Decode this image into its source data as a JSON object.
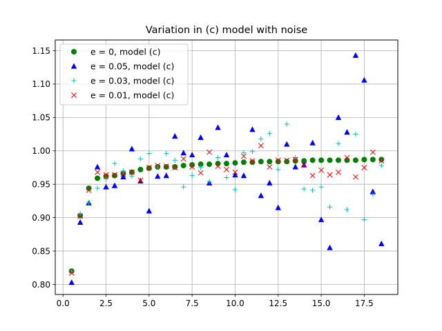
{
  "chart_data": {
    "type": "scatter",
    "title": "Variation in (c) model with noise",
    "xlabel": "",
    "ylabel": "",
    "xlim": [
      -0.45,
      19.45
    ],
    "ylim": [
      0.785,
      1.166
    ],
    "xticks": [
      0.0,
      2.5,
      5.0,
      7.5,
      10.0,
      12.5,
      15.0,
      17.5
    ],
    "xtick_labels": [
      "0.0",
      "2.5",
      "5.0",
      "7.5",
      "10.0",
      "12.5",
      "15.0",
      "17.5"
    ],
    "yticks": [
      0.8,
      0.85,
      0.9,
      0.95,
      1.0,
      1.05,
      1.1,
      1.15
    ],
    "ytick_labels": [
      "0.80",
      "0.85",
      "0.90",
      "0.95",
      "1.00",
      "1.05",
      "1.10",
      "1.15"
    ],
    "grid": true,
    "legend_position": "top-left",
    "x": [
      0.5,
      1.0,
      1.5,
      2.0,
      2.5,
      3.0,
      3.5,
      4.0,
      4.5,
      5.0,
      5.5,
      6.0,
      6.5,
      7.0,
      7.5,
      8.0,
      8.5,
      9.0,
      9.5,
      10.0,
      10.5,
      11.0,
      11.5,
      12.0,
      12.5,
      13.0,
      13.5,
      14.0,
      14.5,
      15.0,
      15.5,
      16.0,
      16.5,
      17.0,
      17.5,
      18.0,
      18.5
    ],
    "series": [
      {
        "name": "e = 0, model (c)",
        "marker": "circle",
        "color": "#008000",
        "values": [
          0.82,
          0.903,
          0.944,
          0.959,
          0.962,
          0.963,
          0.966,
          0.968,
          0.972,
          0.974,
          0.976,
          0.976,
          0.976,
          0.978,
          0.979,
          0.98,
          0.98,
          0.981,
          0.981,
          0.982,
          0.983,
          0.983,
          0.984,
          0.984,
          0.984,
          0.984,
          0.985,
          0.985,
          0.986,
          0.986,
          0.986,
          0.986,
          0.986,
          0.986,
          0.987,
          0.987,
          0.987
        ]
      },
      {
        "name": "e = 0.05, model (c)",
        "marker": "triangle",
        "color": "#0000ff",
        "values": [
          0.803,
          0.893,
          0.922,
          0.976,
          0.946,
          0.948,
          0.961,
          1.003,
          0.955,
          0.91,
          0.962,
          0.963,
          1.022,
          0.997,
          0.994,
          1.02,
          0.952,
          1.035,
          0.994,
          0.964,
          0.963,
          1.032,
          0.933,
          0.952,
          0.915,
          1.01,
          0.976,
          0.979,
          1.012,
          0.897,
          0.855,
          1.05,
          1.028,
          1.143,
          1.106,
          0.939,
          0.861
        ]
      },
      {
        "name": "e = 0.03, model (c)",
        "marker": "plus",
        "color": "#00bfbf",
        "values": [
          0.82,
          0.906,
          0.922,
          0.944,
          0.958,
          0.981,
          0.97,
          0.962,
          0.988,
          0.996,
          0.976,
          0.996,
          0.986,
          0.946,
          0.963,
          0.975,
          0.954,
          0.99,
          0.96,
          0.942,
          0.997,
          0.999,
          1.018,
          1.026,
          0.972,
          1.04,
          0.99,
          0.943,
          0.941,
          0.946,
          0.916,
          1.011,
          0.912,
          1.025,
          0.897,
          0.935,
          0.978
        ]
      },
      {
        "name": "e = 0.01, model (c)",
        "marker": "x",
        "color": "#ff0000",
        "values": [
          0.817,
          0.902,
          0.941,
          0.968,
          0.964,
          0.964,
          0.965,
          0.968,
          0.956,
          0.975,
          0.978,
          0.977,
          0.975,
          0.988,
          0.976,
          0.967,
          0.998,
          0.977,
          0.972,
          0.968,
          0.992,
          0.985,
          1.008,
          0.976,
          0.986,
          0.986,
          0.987,
          0.979,
          0.963,
          0.971,
          0.964,
          0.968,
          0.99,
          0.961,
          0.975,
          0.998,
          0.985
        ]
      }
    ]
  }
}
